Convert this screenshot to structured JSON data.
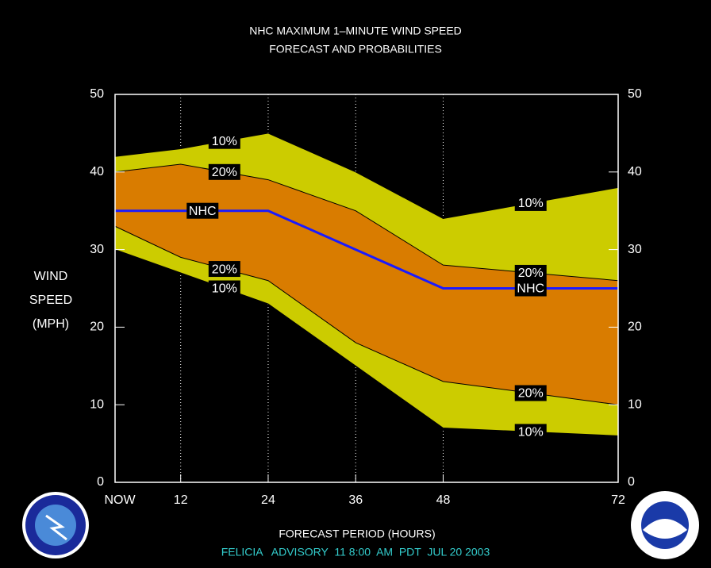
{
  "chart_data": {
    "type": "line",
    "title": [
      "NHC MAXIMUM 1–MINUTE WIND SPEED",
      "FORECAST AND PROBABILITIES"
    ],
    "y_label": [
      "WIND",
      "SPEED",
      "(MPH)"
    ],
    "x_label": "FORECAST PERIOD (HOURS)",
    "footer": "FELICIA   ADVISORY  11 8:00  AM  PDT  JUL 20 2003",
    "x": [
      3,
      12,
      24,
      36,
      48,
      72
    ],
    "series": [
      {
        "name": "10%",
        "color": "#cccc00",
        "values": [
          42,
          43,
          45,
          40,
          34,
          38
        ]
      },
      {
        "name": "20%",
        "color": "#d97c00",
        "values": [
          40,
          41,
          39,
          35,
          28,
          26
        ]
      },
      {
        "name": "NHC",
        "color": "#1a1aff",
        "values": [
          35,
          35,
          35,
          30,
          25,
          25
        ]
      },
      {
        "name": "20%",
        "color": "#d97c00",
        "values": [
          33,
          29,
          26,
          18,
          13,
          10
        ]
      },
      {
        "name": "10%",
        "color": "#cccc00",
        "values": [
          30,
          27,
          23,
          15,
          7,
          6
        ]
      }
    ],
    "xlim": [
      3,
      72
    ],
    "xticks": [
      {
        "value": 3,
        "label": "NOW"
      },
      12,
      24,
      36,
      48,
      72
    ],
    "ylim": [
      0,
      50
    ],
    "yticks": [
      0,
      10,
      20,
      30,
      40,
      50
    ],
    "grid": true
  }
}
